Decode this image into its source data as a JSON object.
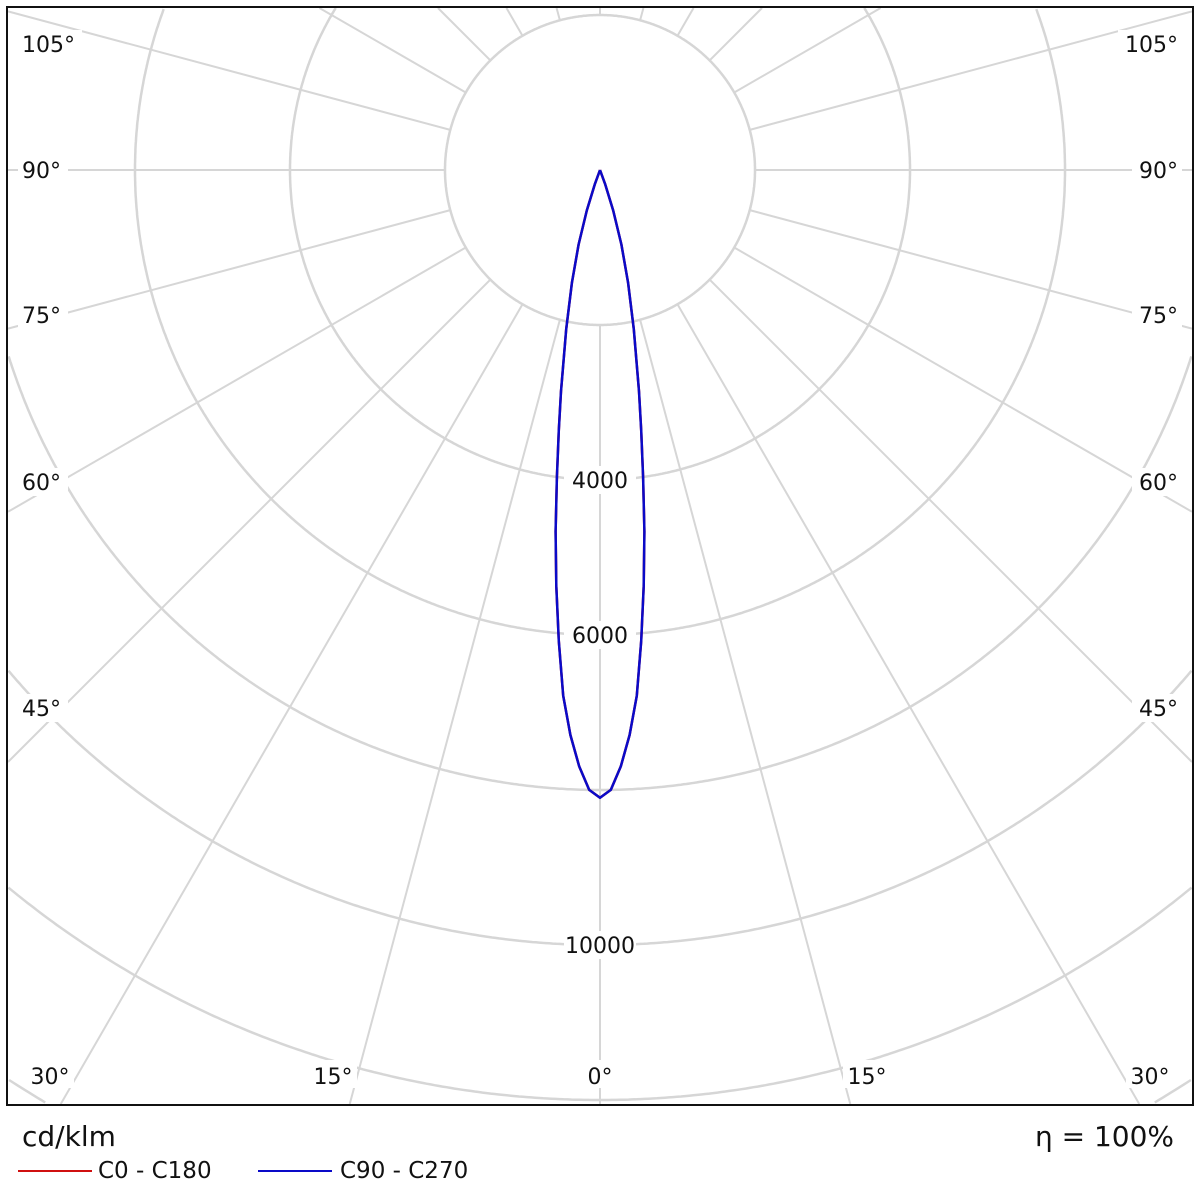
{
  "chart_data": {
    "type": "polar",
    "unit_label": "cd/klm",
    "efficiency_label": "η = 100%",
    "radial_ticks": [
      2000,
      4000,
      6000,
      8000,
      10000
    ],
    "radial_tick_labels": [
      "4000",
      "6000",
      "10000"
    ],
    "radial_tick_label_values": [
      4000,
      6000,
      10000
    ],
    "angle_labels": [
      {
        "text": "0°",
        "angle": 0
      },
      {
        "text": "15°",
        "angle": 15
      },
      {
        "text": "30°",
        "angle": 30
      },
      {
        "text": "45°",
        "angle": 45
      },
      {
        "text": "60°",
        "angle": 60
      },
      {
        "text": "75°",
        "angle": 75
      },
      {
        "text": "90°",
        "angle": 90
      },
      {
        "text": "105°",
        "angle": 105
      }
    ],
    "grid": true,
    "angle_step_deg": 15,
    "legend_placement": "bottom-left",
    "series": [
      {
        "name": "C0 - C180",
        "color": "#d01010",
        "gamma": [
          0,
          1,
          2,
          3,
          4,
          5,
          6,
          7,
          8,
          9,
          10,
          12,
          14,
          16,
          18,
          20,
          22
        ],
        "values": [
          8100,
          8000,
          7700,
          7300,
          6800,
          6100,
          5400,
          4700,
          4000,
          3400,
          2900,
          2100,
          1500,
          1000,
          550,
          200,
          0
        ]
      },
      {
        "name": "C90 - C270",
        "color": "#0a0ac8",
        "gamma": [
          0,
          1,
          2,
          3,
          4,
          5,
          6,
          7,
          8,
          9,
          10,
          12,
          14,
          16,
          18,
          20,
          22
        ],
        "values": [
          8100,
          8000,
          7700,
          7300,
          6800,
          6100,
          5400,
          4700,
          4000,
          3400,
          2900,
          2100,
          1500,
          1000,
          550,
          200,
          0
        ]
      }
    ]
  }
}
